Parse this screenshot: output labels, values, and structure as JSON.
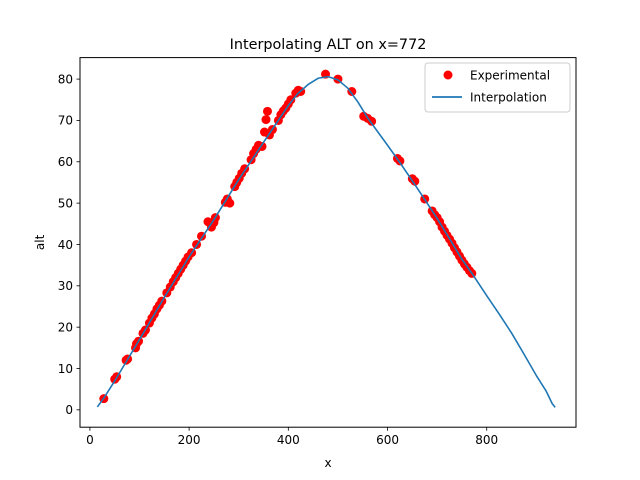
{
  "chart_data": {
    "type": "scatter",
    "title": "Interpolating ALT on x=772",
    "xlabel": "x",
    "ylabel": "alt",
    "xlim": [
      -20,
      980
    ],
    "ylim": [
      -4.2,
      85.2
    ],
    "xticks": [
      0,
      200,
      400,
      600,
      800
    ],
    "yticks": [
      0,
      10,
      20,
      30,
      40,
      50,
      60,
      70,
      80
    ],
    "grid": false,
    "legend_position": "top-right",
    "series": [
      {
        "name": "Experimental",
        "kind": "scatter",
        "color": "#ff0000",
        "points": [
          [
            28,
            2.7
          ],
          [
            50,
            7.4
          ],
          [
            54,
            8.0
          ],
          [
            73,
            12.0
          ],
          [
            76,
            12.3
          ],
          [
            92,
            15.0
          ],
          [
            94,
            16.0
          ],
          [
            98,
            16.6
          ],
          [
            107,
            18.5
          ],
          [
            112,
            19.3
          ],
          [
            120,
            21.0
          ],
          [
            125,
            22.2
          ],
          [
            130,
            23.2
          ],
          [
            135,
            24.4
          ],
          [
            140,
            25.3
          ],
          [
            145,
            26.3
          ],
          [
            155,
            28.3
          ],
          [
            162,
            29.7
          ],
          [
            168,
            31.0
          ],
          [
            173,
            32.0
          ],
          [
            178,
            33.0
          ],
          [
            183,
            34.0
          ],
          [
            188,
            35.0
          ],
          [
            193,
            36.0
          ],
          [
            198,
            37.0
          ],
          [
            205,
            38.0
          ],
          [
            215,
            40.0
          ],
          [
            225,
            42.0
          ],
          [
            238,
            45.5
          ],
          [
            245,
            44.2
          ],
          [
            250,
            45.3
          ],
          [
            253,
            46.5
          ],
          [
            273,
            50.2
          ],
          [
            277,
            51.0
          ],
          [
            282,
            50.0
          ],
          [
            292,
            54.0
          ],
          [
            296,
            55.0
          ],
          [
            301,
            56.0
          ],
          [
            306,
            57.2
          ],
          [
            312,
            58.3
          ],
          [
            325,
            60.5
          ],
          [
            330,
            62.0
          ],
          [
            335,
            63.0
          ],
          [
            340,
            64.0
          ],
          [
            347,
            63.7
          ],
          [
            352,
            67.2
          ],
          [
            355,
            70.2
          ],
          [
            358,
            72.2
          ],
          [
            362,
            66.5
          ],
          [
            368,
            67.8
          ],
          [
            380,
            70.0
          ],
          [
            385,
            71.4
          ],
          [
            390,
            72.3
          ],
          [
            395,
            73.0
          ],
          [
            400,
            74.0
          ],
          [
            405,
            75.0
          ],
          [
            415,
            76.6
          ],
          [
            420,
            77.3
          ],
          [
            425,
            77.0
          ],
          [
            475,
            81.2
          ],
          [
            500,
            80.0
          ],
          [
            528,
            77.0
          ],
          [
            552,
            71.0
          ],
          [
            560,
            70.5
          ],
          [
            568,
            69.8
          ],
          [
            620,
            60.8
          ],
          [
            625,
            60.2
          ],
          [
            650,
            55.9
          ],
          [
            655,
            55.3
          ],
          [
            675,
            51.0
          ],
          [
            690,
            48.1
          ],
          [
            695,
            47.2
          ],
          [
            700,
            46.5
          ],
          [
            705,
            45.5
          ],
          [
            710,
            44.2
          ],
          [
            715,
            43.2
          ],
          [
            720,
            42.2
          ],
          [
            725,
            41.3
          ],
          [
            730,
            40.3
          ],
          [
            735,
            39.2
          ],
          [
            740,
            38.2
          ],
          [
            745,
            37.2
          ],
          [
            750,
            36.2
          ],
          [
            755,
            35.3
          ],
          [
            760,
            34.5
          ],
          [
            765,
            33.7
          ],
          [
            770,
            33.0
          ]
        ]
      },
      {
        "name": "Interpolation",
        "kind": "line",
        "color": "#1f77b4",
        "points": [
          [
            15,
            0.7
          ],
          [
            30,
            3.2
          ],
          [
            50,
            7.0
          ],
          [
            75,
            12.0
          ],
          [
            100,
            17.0
          ],
          [
            150,
            27.2
          ],
          [
            200,
            37.0
          ],
          [
            250,
            46.0
          ],
          [
            300,
            55.7
          ],
          [
            350,
            64.7
          ],
          [
            400,
            73.6
          ],
          [
            420,
            76.6
          ],
          [
            440,
            78.7
          ],
          [
            460,
            80.2
          ],
          [
            480,
            80.6
          ],
          [
            500,
            79.8
          ],
          [
            520,
            77.8
          ],
          [
            540,
            74.5
          ],
          [
            560,
            70.6
          ],
          [
            580,
            67.3
          ],
          [
            600,
            64.0
          ],
          [
            625,
            59.8
          ],
          [
            650,
            55.4
          ],
          [
            675,
            50.9
          ],
          [
            700,
            46.3
          ],
          [
            725,
            41.4
          ],
          [
            750,
            36.4
          ],
          [
            772,
            32.7
          ],
          [
            800,
            27.6
          ],
          [
            825,
            23.2
          ],
          [
            850,
            18.6
          ],
          [
            875,
            13.5
          ],
          [
            900,
            8.3
          ],
          [
            920,
            4.5
          ],
          [
            932,
            1.5
          ],
          [
            938,
            0.6
          ]
        ]
      }
    ]
  }
}
